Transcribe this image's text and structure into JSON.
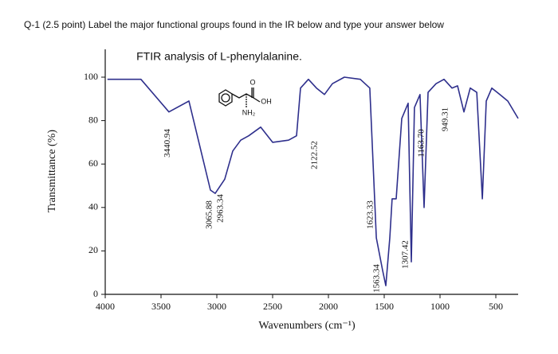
{
  "question": "Q-1 (2.5 point) Label the major functional groups found in the IR below and type your answer below",
  "chart_data": {
    "type": "line",
    "title": "FTIR analysis of L-phenylalanine.",
    "xlabel": "Wavenumbers (cm⁻¹)",
    "ylabel": "Transmittance (%)",
    "xlim": [
      4000,
      300
    ],
    "ylim": [
      0,
      100
    ],
    "xticks": [
      4000,
      3500,
      3000,
      2500,
      2000,
      1500,
      1000,
      500
    ],
    "yticks": [
      0,
      20,
      40,
      60,
      80,
      100
    ],
    "color": "#2e2f8c",
    "x": [
      3980,
      3680,
      3429,
      3250,
      3057,
      3014,
      2929,
      2857,
      2786,
      2714,
      2607,
      2500,
      2357,
      2286,
      2250,
      2179,
      2107,
      2036,
      1964,
      1857,
      1714,
      1629,
      1571,
      1514,
      1486,
      1450,
      1429,
      1393,
      1343,
      1286,
      1257,
      1229,
      1179,
      1143,
      1107,
      1036,
      964,
      893,
      843,
      786,
      729,
      671,
      621,
      586,
      536,
      464,
      393,
      300
    ],
    "values": [
      99,
      99,
      84,
      89,
      48,
      46.5,
      53,
      66,
      71,
      73,
      77,
      70,
      71,
      73,
      95,
      99,
      95,
      92,
      97,
      100,
      99,
      95,
      26,
      11,
      4,
      26,
      44,
      44,
      81,
      88,
      15,
      86,
      92,
      40,
      93,
      97,
      99,
      95,
      96,
      84,
      95,
      93,
      44,
      89,
      95,
      92,
      89,
      81
    ],
    "peak_labels": [
      {
        "value": 3440.94,
        "label": "3440.94"
      },
      {
        "value": 3065.88,
        "label": "3065.88"
      },
      {
        "value": 2963.34,
        "label": "2963.34"
      },
      {
        "value": 2122.52,
        "label": "2122.52"
      },
      {
        "value": 1623.33,
        "label": "1623.33"
      },
      {
        "value": 1563.34,
        "label": "1563.34"
      },
      {
        "value": 1307.42,
        "label": "1307.42"
      },
      {
        "value": 1163.7,
        "label": "1163.70"
      },
      {
        "value": 949.31,
        "label": "949.31"
      }
    ],
    "structure_labels": [
      "O",
      "OH",
      "NH₂"
    ]
  }
}
